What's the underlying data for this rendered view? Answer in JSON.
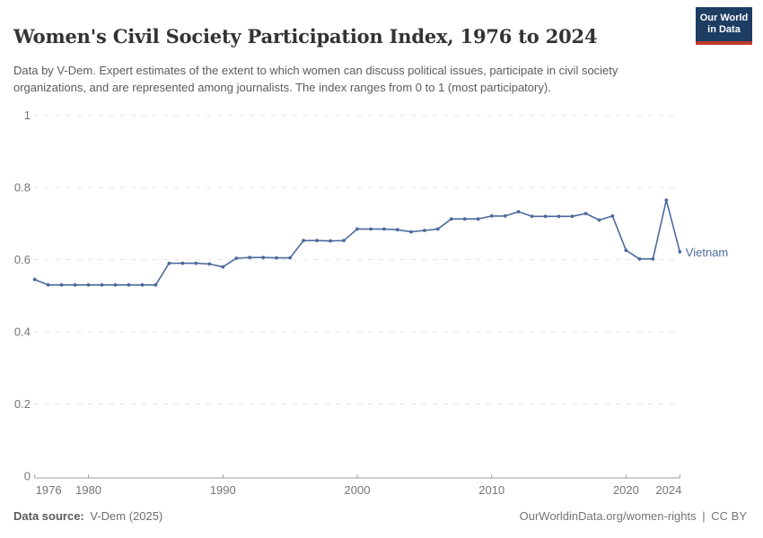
{
  "header": {
    "title": "Women's Civil Society Participation Index, 1976 to 2024",
    "subtitle": "Data by V-Dem. Expert estimates of the extent to which women can discuss political issues, participate in civil society organizations, and are represented among journalists. The index ranges from 0 to 1 (most participatory).",
    "logo": {
      "line1": "Our World",
      "line2": "in Data"
    }
  },
  "chart_data": {
    "type": "line",
    "title": "Women's Civil Society Participation Index, 1976 to 2024",
    "entity": "Vietnam",
    "xlabel": "",
    "ylabel": "",
    "ylim": [
      0,
      1
    ],
    "yticks": [
      0,
      0.2,
      0.4,
      0.6,
      0.8,
      1
    ],
    "xticks": [
      1976,
      1980,
      1990,
      2000,
      2010,
      2020,
      2024
    ],
    "grid": "horizontal-dashed",
    "legend_position": "end-of-line-label",
    "x": [
      1976,
      1977,
      1978,
      1979,
      1980,
      1981,
      1982,
      1983,
      1984,
      1985,
      1986,
      1987,
      1988,
      1989,
      1990,
      1991,
      1992,
      1993,
      1994,
      1995,
      1996,
      1997,
      1998,
      1999,
      2000,
      2001,
      2002,
      2003,
      2004,
      2005,
      2006,
      2007,
      2008,
      2009,
      2010,
      2011,
      2012,
      2013,
      2014,
      2015,
      2016,
      2017,
      2018,
      2019,
      2020,
      2021,
      2022,
      2023,
      2024
    ],
    "series": [
      {
        "name": "Vietnam",
        "color": "#4c6a9c",
        "values": [
          0.545,
          0.53,
          0.53,
          0.53,
          0.53,
          0.53,
          0.53,
          0.53,
          0.53,
          0.53,
          0.59,
          0.59,
          0.59,
          0.588,
          0.58,
          0.604,
          0.606,
          0.606,
          0.605,
          0.605,
          0.653,
          0.653,
          0.652,
          0.653,
          0.685,
          0.685,
          0.685,
          0.683,
          0.677,
          0.681,
          0.685,
          0.713,
          0.713,
          0.713,
          0.721,
          0.721,
          0.733,
          0.72,
          0.72,
          0.72,
          0.72,
          0.728,
          0.71,
          0.721,
          0.626,
          0.602,
          0.602,
          0.765,
          0.622
        ]
      }
    ]
  },
  "footer": {
    "source_label": "Data source:",
    "source_value": "V-Dem (2025)",
    "url": "OurWorldinData.org/women-rights",
    "separator": "|",
    "license": "CC BY"
  },
  "colors": {
    "line": "#4c6a9c",
    "grid": "#e2e2e2",
    "axis": "#9e9e9e",
    "tick_label": "#757575",
    "title": "#333333",
    "subtitle": "#5b5b5b",
    "footer": "#6e6e6e",
    "logo_bg": "#1d3d63",
    "logo_accent": "#c0392b"
  }
}
